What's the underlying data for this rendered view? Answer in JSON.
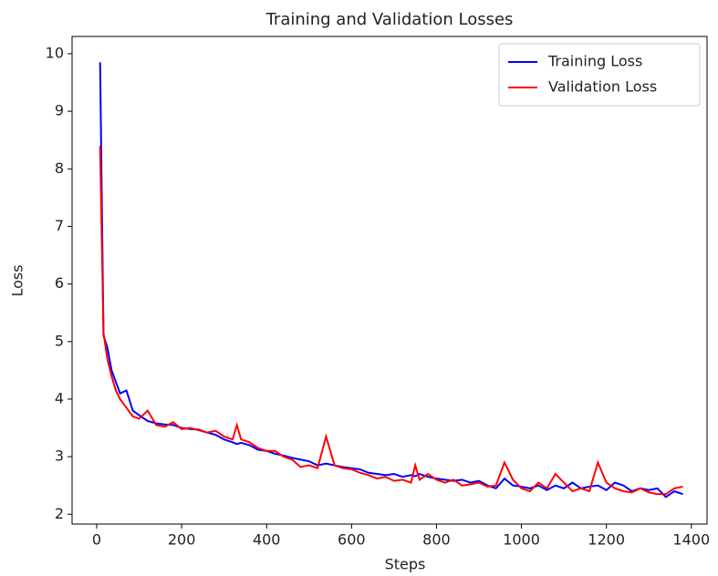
{
  "chart_data": {
    "type": "line",
    "title": "Training and Validation Losses",
    "xlabel": "Steps",
    "ylabel": "Loss",
    "x": [
      8,
      16,
      25,
      35,
      45,
      55,
      70,
      85,
      100,
      120,
      140,
      160,
      180,
      200,
      220,
      240,
      260,
      280,
      300,
      320,
      330,
      340,
      360,
      380,
      400,
      420,
      440,
      460,
      480,
      500,
      520,
      540,
      560,
      580,
      600,
      620,
      640,
      660,
      680,
      700,
      720,
      740,
      750,
      760,
      780,
      800,
      820,
      840,
      860,
      880,
      900,
      920,
      940,
      960,
      980,
      1000,
      1020,
      1040,
      1060,
      1080,
      1100,
      1120,
      1140,
      1160,
      1180,
      1200,
      1220,
      1240,
      1260,
      1280,
      1300,
      1320,
      1340,
      1360,
      1380
    ],
    "series": [
      {
        "name": "Training Loss",
        "color": "#0000ff",
        "values": [
          9.85,
          5.1,
          4.9,
          4.5,
          4.3,
          4.1,
          4.15,
          3.8,
          3.72,
          3.62,
          3.58,
          3.56,
          3.55,
          3.5,
          3.48,
          3.47,
          3.42,
          3.38,
          3.3,
          3.25,
          3.22,
          3.24,
          3.2,
          3.12,
          3.1,
          3.05,
          3.02,
          2.98,
          2.95,
          2.92,
          2.85,
          2.88,
          2.85,
          2.82,
          2.8,
          2.78,
          2.72,
          2.7,
          2.68,
          2.7,
          2.65,
          2.68,
          2.66,
          2.7,
          2.65,
          2.62,
          2.6,
          2.58,
          2.6,
          2.55,
          2.58,
          2.5,
          2.45,
          2.62,
          2.5,
          2.48,
          2.45,
          2.5,
          2.42,
          2.5,
          2.45,
          2.55,
          2.45,
          2.48,
          2.5,
          2.42,
          2.55,
          2.5,
          2.4,
          2.45,
          2.42,
          2.45,
          2.3,
          2.4,
          2.35
        ]
      },
      {
        "name": "Validation Loss",
        "color": "#ff0000",
        "values": [
          8.4,
          5.15,
          4.7,
          4.4,
          4.15,
          4.0,
          3.85,
          3.7,
          3.66,
          3.8,
          3.55,
          3.52,
          3.6,
          3.48,
          3.5,
          3.46,
          3.42,
          3.45,
          3.35,
          3.3,
          3.55,
          3.3,
          3.25,
          3.15,
          3.1,
          3.1,
          3.0,
          2.95,
          2.82,
          2.85,
          2.8,
          3.35,
          2.85,
          2.8,
          2.78,
          2.72,
          2.68,
          2.62,
          2.65,
          2.58,
          2.6,
          2.55,
          2.85,
          2.6,
          2.7,
          2.6,
          2.55,
          2.6,
          2.5,
          2.52,
          2.55,
          2.48,
          2.5,
          2.9,
          2.6,
          2.45,
          2.4,
          2.55,
          2.45,
          2.7,
          2.55,
          2.4,
          2.45,
          2.4,
          2.9,
          2.55,
          2.45,
          2.4,
          2.38,
          2.45,
          2.38,
          2.35,
          2.35,
          2.45,
          2.48
        ]
      }
    ],
    "xlim": [
      -58,
      1437
    ],
    "xticks": [
      0,
      200,
      400,
      600,
      800,
      1000,
      1200,
      1400
    ],
    "ylim": [
      1.83,
      10.3
    ],
    "yticks": [
      2,
      3,
      4,
      5,
      6,
      7,
      8,
      9,
      10
    ],
    "legend": "upper right",
    "grid": false
  }
}
